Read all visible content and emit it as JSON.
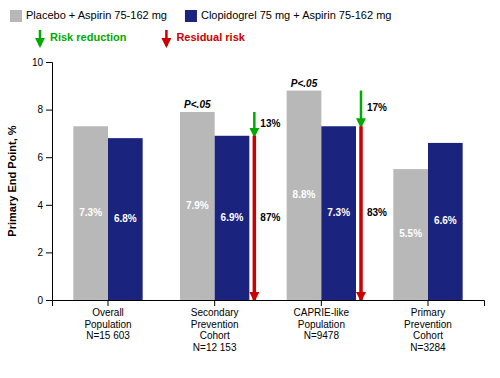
{
  "chart_data": {
    "type": "bar",
    "categories": [
      "Overall\nPopulation\nN=15 603",
      "Secondary\nPrevention\nCohort\nN=12 153",
      "CAPRIE-like\nPopulation\nN=9478",
      "Primary\nPrevention\nCohort\nN=3284"
    ],
    "series": [
      {
        "name": "Placebo + Aspirin 75-162 mg",
        "color": "#b8b8b8",
        "values": [
          7.3,
          7.9,
          8.8,
          5.5
        ],
        "value_labels": [
          "7.3%",
          "7.9%",
          "8.8%",
          "5.5%"
        ]
      },
      {
        "name": "Clopidogrel 75 mg + Aspirin 75-162 mg",
        "color": "#1a237e",
        "values": [
          6.8,
          6.9,
          7.3,
          6.6
        ],
        "value_labels": [
          "6.8%",
          "6.9%",
          "7.3%",
          "6.6%"
        ]
      }
    ],
    "ylabel": "Primary End Point, %",
    "ylim": [
      0,
      10
    ],
    "yticks": [
      0,
      2,
      4,
      6,
      8,
      10
    ],
    "data_labels": true,
    "annotations": [
      {
        "text": "P<.05",
        "category": "Secondary\nPrevention\nCohort\nN=12 153",
        "series": 0
      },
      {
        "text": "P<.05",
        "category": "CAPRIE-like\nPopulation\nN=9478",
        "series": 0
      }
    ],
    "arrows": [
      {
        "name": "Risk reduction",
        "color": "#00aa00",
        "items": [
          {
            "category": "Secondary\nPrevention\nCohort\nN=12 153",
            "from": 7.9,
            "to": 6.9,
            "label": "13%"
          },
          {
            "category": "CAPRIE-like\nPopulation\nN=9478",
            "from": 8.8,
            "to": 7.3,
            "label": "17%"
          }
        ]
      },
      {
        "name": "Residual risk",
        "color": "#cc0000",
        "items": [
          {
            "category": "Secondary\nPrevention\nCohort\nN=12 153",
            "from": 6.9,
            "to": 0,
            "label": "87%"
          },
          {
            "category": "CAPRIE-like\nPopulation\nN=9478",
            "from": 7.3,
            "to": 0,
            "label": "83%"
          }
        ]
      }
    ]
  }
}
